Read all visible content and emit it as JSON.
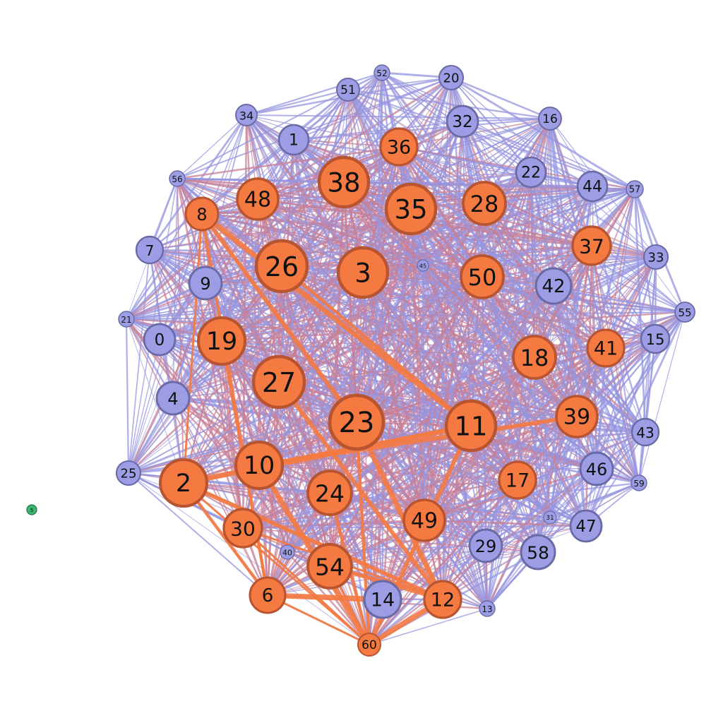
{
  "colors": {
    "group_a_fill": "#f47a42",
    "group_a_stroke": "#b85530",
    "group_b_fill": "#9d9de6",
    "group_b_stroke": "#6a6aa6",
    "isolated_fill": "#3bb371",
    "isolated_stroke": "#25734a",
    "edge_a": "#f47a42",
    "edge_b": "#9696e0",
    "edge_mixed": "#c87f96"
  },
  "nodes": [
    {
      "id": "0",
      "group": "b"
    },
    {
      "id": "1",
      "group": "b"
    },
    {
      "id": "2",
      "group": "a"
    },
    {
      "id": "3",
      "group": "a"
    },
    {
      "id": "4",
      "group": "b"
    },
    {
      "id": "5",
      "group": "isolated"
    },
    {
      "id": "6",
      "group": "a"
    },
    {
      "id": "7",
      "group": "b"
    },
    {
      "id": "8",
      "group": "a"
    },
    {
      "id": "9",
      "group": "b"
    },
    {
      "id": "10",
      "group": "a"
    },
    {
      "id": "11",
      "group": "a"
    },
    {
      "id": "12",
      "group": "a"
    },
    {
      "id": "13",
      "group": "b"
    },
    {
      "id": "14",
      "group": "b"
    },
    {
      "id": "15",
      "group": "b"
    },
    {
      "id": "16",
      "group": "b"
    },
    {
      "id": "17",
      "group": "a"
    },
    {
      "id": "18",
      "group": "a"
    },
    {
      "id": "19",
      "group": "a"
    },
    {
      "id": "20",
      "group": "b"
    },
    {
      "id": "21",
      "group": "b"
    },
    {
      "id": "22",
      "group": "b"
    },
    {
      "id": "23",
      "group": "a"
    },
    {
      "id": "24",
      "group": "a"
    },
    {
      "id": "25",
      "group": "b"
    },
    {
      "id": "26",
      "group": "a"
    },
    {
      "id": "27",
      "group": "a"
    },
    {
      "id": "28",
      "group": "a"
    },
    {
      "id": "29",
      "group": "b"
    },
    {
      "id": "30",
      "group": "a"
    },
    {
      "id": "31",
      "group": "b"
    },
    {
      "id": "32",
      "group": "b"
    },
    {
      "id": "33",
      "group": "b"
    },
    {
      "id": "34",
      "group": "b"
    },
    {
      "id": "35",
      "group": "a"
    },
    {
      "id": "36",
      "group": "a"
    },
    {
      "id": "37",
      "group": "a"
    },
    {
      "id": "38",
      "group": "a"
    },
    {
      "id": "39",
      "group": "a"
    },
    {
      "id": "40",
      "group": "b"
    },
    {
      "id": "41",
      "group": "a"
    },
    {
      "id": "42",
      "group": "b"
    },
    {
      "id": "43",
      "group": "b"
    },
    {
      "id": "44",
      "group": "b"
    },
    {
      "id": "45",
      "group": "b"
    },
    {
      "id": "46",
      "group": "b"
    },
    {
      "id": "47",
      "group": "b"
    },
    {
      "id": "48",
      "group": "a"
    },
    {
      "id": "49",
      "group": "a"
    },
    {
      "id": "50",
      "group": "a"
    },
    {
      "id": "51",
      "group": "b"
    },
    {
      "id": "52",
      "group": "b"
    },
    {
      "id": "54",
      "group": "a"
    },
    {
      "id": "55",
      "group": "b"
    },
    {
      "id": "56",
      "group": "b"
    },
    {
      "id": "57",
      "group": "b"
    },
    {
      "id": "58",
      "group": "b"
    },
    {
      "id": "59",
      "group": "b"
    },
    {
      "id": "60",
      "group": "a"
    }
  ],
  "heavy_edges": [
    [
      "2",
      "60"
    ],
    [
      "2",
      "6"
    ],
    [
      "2",
      "12"
    ],
    [
      "2",
      "11"
    ],
    [
      "2",
      "8"
    ],
    [
      "8",
      "6"
    ],
    [
      "8",
      "23"
    ],
    [
      "8",
      "11"
    ],
    [
      "19",
      "6"
    ],
    [
      "10",
      "11"
    ],
    [
      "10",
      "39"
    ],
    [
      "6",
      "14"
    ],
    [
      "6",
      "60"
    ],
    [
      "60",
      "23"
    ],
    [
      "60",
      "11"
    ],
    [
      "60",
      "12"
    ],
    [
      "30",
      "60"
    ],
    [
      "26",
      "11"
    ],
    [
      "54",
      "12"
    ],
    [
      "12",
      "23"
    ],
    [
      "54",
      "60"
    ],
    [
      "24",
      "60"
    ],
    [
      "27",
      "12"
    ],
    [
      "10",
      "60"
    ],
    [
      "30",
      "12"
    ]
  ]
}
